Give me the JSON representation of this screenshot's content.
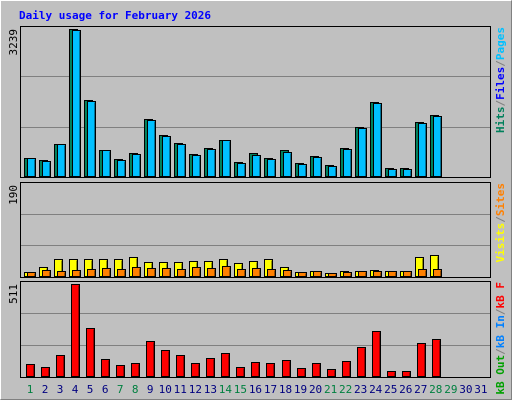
{
  "chart_data": [
    {
      "type": "bar",
      "title": "Daily usage for February 2026",
      "ylim": [
        0,
        3239
      ],
      "yticks": [
        3239
      ],
      "grid_divisions": 3,
      "legend": [
        {
          "text": "Pages",
          "color": "#00c0ff"
        },
        {
          "text": "Files",
          "color": "#0000ff"
        },
        {
          "text": "Hits",
          "color": "#00805c"
        }
      ],
      "series": [
        {
          "color": "#00805c",
          "values": [
            420,
            380,
            730,
            3239,
            1690,
            600,
            400,
            530,
            1265,
            910,
            755,
            510,
            645,
            820,
            330,
            530,
            420,
            580,
            310,
            465,
            265,
            645,
            1090,
            1645,
            200,
            200,
            1200,
            1355,
            null,
            null,
            null
          ]
        },
        {
          "color": "#00c0ff",
          "values": [
            420,
            355,
            730,
            3220,
            1665,
            580,
            380,
            510,
            1245,
            890,
            730,
            490,
            620,
            800,
            310,
            490,
            400,
            555,
            290,
            445,
            245,
            620,
            1065,
            1620,
            180,
            180,
            1175,
            1330,
            null,
            null,
            null
          ]
        }
      ]
    },
    {
      "type": "bar",
      "ylim": [
        0,
        190
      ],
      "yticks": [
        190
      ],
      "grid_divisions": 3,
      "legend": [
        {
          "text": "Sites",
          "color": "#ff8000"
        },
        {
          "text": "Visits",
          "color": "#ffff00"
        }
      ],
      "series": [
        {
          "color": "#ffff00",
          "values": [
            11,
            21,
            37,
            38,
            37,
            37,
            37,
            42,
            31,
            31,
            31,
            33,
            33,
            38,
            28,
            34,
            37,
            21,
            11,
            13,
            9,
            12,
            12,
            14,
            13,
            12,
            42,
            45,
            null,
            null,
            null
          ]
        },
        {
          "color": "#ff8000",
          "values": [
            11,
            15,
            13,
            15,
            16,
            19,
            16,
            20,
            18,
            18,
            17,
            20,
            18,
            22,
            16,
            19,
            17,
            14,
            10,
            12,
            9,
            11,
            12,
            13,
            13,
            12,
            17,
            16,
            null,
            null,
            null
          ]
        }
      ]
    },
    {
      "type": "bar",
      "ylim": [
        0,
        511
      ],
      "yticks": [
        511
      ],
      "grid_divisions": 3,
      "legend": [
        {
          "text": "kB F",
          "color": "#ff0000"
        },
        {
          "text": "kB In",
          "color": "#0080ff"
        },
        {
          "text": "kB Out",
          "color": "#00a000"
        }
      ],
      "series": [
        {
          "color": "#ff0000",
          "values": [
            72,
            56,
            122,
            511,
            267,
            100,
            67,
            78,
            200,
            150,
            122,
            78,
            105,
            133,
            56,
            83,
            78,
            94,
            50,
            78,
            44,
            89,
            167,
            255,
            33,
            33,
            189,
            211,
            null,
            null,
            null
          ]
        }
      ],
      "categories": [
        1,
        2,
        3,
        4,
        5,
        6,
        7,
        8,
        9,
        10,
        11,
        12,
        13,
        14,
        15,
        16,
        17,
        18,
        19,
        20,
        21,
        22,
        23,
        24,
        25,
        26,
        27,
        28,
        29,
        30,
        31
      ],
      "category_colors": [
        "#008040",
        "#000080",
        "#000080",
        "#000080",
        "#000080",
        "#000080",
        "#008040",
        "#008040",
        "#000080",
        "#000080",
        "#000080",
        "#000080",
        "#000080",
        "#008040",
        "#008040",
        "#000080",
        "#000080",
        "#000080",
        "#000080",
        "#000080",
        "#008040",
        "#008040",
        "#000080",
        "#000080",
        "#000080",
        "#000080",
        "#000080",
        "#008040",
        "#008040",
        "#000080",
        "#000080"
      ]
    }
  ],
  "legend_separator": "/"
}
